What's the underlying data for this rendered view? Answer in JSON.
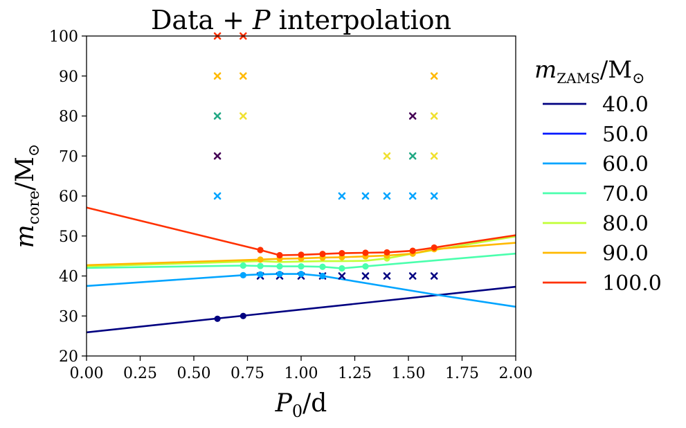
{
  "chart_data": {
    "type": "line",
    "title_parts": [
      "Data + ",
      "P",
      " interpolation"
    ],
    "xlabel_parts": [
      "P",
      "0",
      "/d"
    ],
    "ylabel_parts": [
      "m",
      "core",
      "/M",
      "⊙"
    ],
    "legend_title_parts": [
      "m",
      "ZAMS",
      "/M",
      "⊙"
    ],
    "xlim": [
      0.0,
      2.0
    ],
    "ylim": [
      20,
      100
    ],
    "xticks": [
      "0.00",
      "0.25",
      "0.50",
      "0.75",
      "1.00",
      "1.25",
      "1.50",
      "1.75",
      "2.00"
    ],
    "yticks": [
      "20",
      "30",
      "40",
      "50",
      "60",
      "70",
      "80",
      "90",
      "100"
    ],
    "legend_position": "outside-right",
    "grid": false,
    "series": [
      {
        "name": "40.0",
        "color": "#000080",
        "line": [
          [
            0.0,
            25.9
          ],
          [
            2.0,
            37.3
          ]
        ],
        "points": [
          [
            0.61,
            29.3
          ],
          [
            0.73,
            30.0
          ]
        ]
      },
      {
        "name": "50.0",
        "color": "#0018ff",
        "line": [],
        "points": []
      },
      {
        "name": "60.0",
        "color": "#00a4ff",
        "line": [
          [
            0.0,
            37.5
          ],
          [
            0.73,
            40.2
          ],
          [
            0.81,
            40.4
          ],
          [
            0.9,
            40.5
          ],
          [
            1.0,
            40.5
          ],
          [
            1.1,
            40.0
          ],
          [
            1.62,
            35.4
          ],
          [
            2.0,
            32.3
          ]
        ],
        "points": [
          [
            0.73,
            40.2
          ],
          [
            0.81,
            40.4
          ],
          [
            0.9,
            40.5
          ],
          [
            1.0,
            40.5
          ],
          [
            1.1,
            40.0
          ]
        ]
      },
      {
        "name": "70.0",
        "color": "#4affad",
        "line": [
          [
            0.0,
            42.0
          ],
          [
            0.73,
            42.6
          ],
          [
            0.81,
            42.5
          ],
          [
            0.9,
            42.4
          ],
          [
            1.0,
            42.4
          ],
          [
            1.1,
            42.3
          ],
          [
            1.19,
            41.9
          ],
          [
            1.3,
            42.4
          ],
          [
            2.0,
            45.6
          ]
        ],
        "points": [
          [
            0.73,
            42.6
          ],
          [
            0.81,
            42.5
          ],
          [
            0.9,
            42.4
          ],
          [
            1.0,
            42.4
          ],
          [
            1.1,
            42.3
          ],
          [
            1.19,
            41.9
          ],
          [
            1.3,
            42.4
          ]
        ]
      },
      {
        "name": "80.0",
        "color": "#c1ff36",
        "line": [
          [
            0.0,
            42.4
          ],
          [
            0.81,
            43.7
          ],
          [
            0.9,
            43.5
          ],
          [
            1.0,
            43.6
          ],
          [
            1.1,
            43.7
          ],
          [
            1.19,
            43.7
          ],
          [
            1.3,
            43.8
          ],
          [
            1.4,
            44.4
          ],
          [
            1.52,
            45.6
          ],
          [
            1.62,
            46.5
          ],
          [
            2.0,
            49.9
          ]
        ],
        "points": [
          [
            1.4,
            44.4
          ],
          [
            1.52,
            45.6
          ]
        ]
      },
      {
        "name": "90.0",
        "color": "#ffb900",
        "line": [
          [
            0.0,
            42.7
          ],
          [
            0.81,
            44.1
          ],
          [
            0.9,
            44.3
          ],
          [
            1.0,
            44.4
          ],
          [
            1.1,
            44.6
          ],
          [
            1.19,
            44.7
          ],
          [
            1.3,
            44.9
          ],
          [
            1.4,
            45.1
          ],
          [
            1.52,
            45.6
          ],
          [
            1.62,
            46.7
          ],
          [
            2.0,
            48.3
          ]
        ],
        "points": [
          [
            0.81,
            44.1
          ],
          [
            0.9,
            44.3
          ],
          [
            1.0,
            44.4
          ],
          [
            1.1,
            44.6
          ],
          [
            1.19,
            44.7
          ],
          [
            1.3,
            44.9
          ],
          [
            1.4,
            45.1
          ],
          [
            1.52,
            45.6
          ],
          [
            1.62,
            46.7
          ]
        ]
      },
      {
        "name": "100.0",
        "color": "#ff3000",
        "line": [
          [
            0.0,
            57.1
          ],
          [
            0.81,
            46.5
          ],
          [
            0.9,
            45.2
          ],
          [
            1.0,
            45.3
          ],
          [
            1.1,
            45.5
          ],
          [
            1.19,
            45.7
          ],
          [
            1.3,
            45.8
          ],
          [
            1.4,
            45.9
          ],
          [
            1.52,
            46.3
          ],
          [
            1.62,
            47.1
          ],
          [
            2.0,
            50.2
          ]
        ],
        "points": [
          [
            0.81,
            46.5
          ],
          [
            0.9,
            45.2
          ],
          [
            1.0,
            45.3
          ],
          [
            1.1,
            45.5
          ],
          [
            1.19,
            45.7
          ],
          [
            1.3,
            45.8
          ],
          [
            1.4,
            45.9
          ],
          [
            1.52,
            46.3
          ],
          [
            1.62,
            47.1
          ]
        ]
      }
    ],
    "crosses": [
      {
        "x": 0.61,
        "y": 100,
        "color": "#ff3000"
      },
      {
        "x": 0.73,
        "y": 100,
        "color": "#ff3000"
      },
      {
        "x": 0.61,
        "y": 90,
        "color": "#ffb900"
      },
      {
        "x": 0.73,
        "y": 90,
        "color": "#ffb900"
      },
      {
        "x": 1.62,
        "y": 90,
        "color": "#ffb900"
      },
      {
        "x": 0.61,
        "y": 80,
        "color": "#21a884"
      },
      {
        "x": 0.73,
        "y": 80,
        "color": "#f0e030"
      },
      {
        "x": 1.52,
        "y": 80,
        "color": "#440154"
      },
      {
        "x": 1.62,
        "y": 80,
        "color": "#f0e030"
      },
      {
        "x": 0.61,
        "y": 70,
        "color": "#440154"
      },
      {
        "x": 1.4,
        "y": 70,
        "color": "#f0e030"
      },
      {
        "x": 1.52,
        "y": 70,
        "color": "#21a884"
      },
      {
        "x": 1.62,
        "y": 70,
        "color": "#f0e030"
      },
      {
        "x": 0.61,
        "y": 60,
        "color": "#00a4ff"
      },
      {
        "x": 1.19,
        "y": 60,
        "color": "#00a4ff"
      },
      {
        "x": 1.3,
        "y": 60,
        "color": "#00a4ff"
      },
      {
        "x": 1.4,
        "y": 60,
        "color": "#00a4ff"
      },
      {
        "x": 1.52,
        "y": 60,
        "color": "#00a4ff"
      },
      {
        "x": 1.62,
        "y": 60,
        "color": "#00a4ff"
      },
      {
        "x": 0.81,
        "y": 40,
        "color": "#000080"
      },
      {
        "x": 0.9,
        "y": 40,
        "color": "#000080"
      },
      {
        "x": 1.0,
        "y": 40,
        "color": "#000080"
      },
      {
        "x": 1.1,
        "y": 40,
        "color": "#000080"
      },
      {
        "x": 1.19,
        "y": 40,
        "color": "#000080"
      },
      {
        "x": 1.3,
        "y": 40,
        "color": "#000080"
      },
      {
        "x": 1.4,
        "y": 40,
        "color": "#000080"
      },
      {
        "x": 1.52,
        "y": 40,
        "color": "#000080"
      },
      {
        "x": 1.62,
        "y": 40,
        "color": "#000080"
      }
    ]
  }
}
